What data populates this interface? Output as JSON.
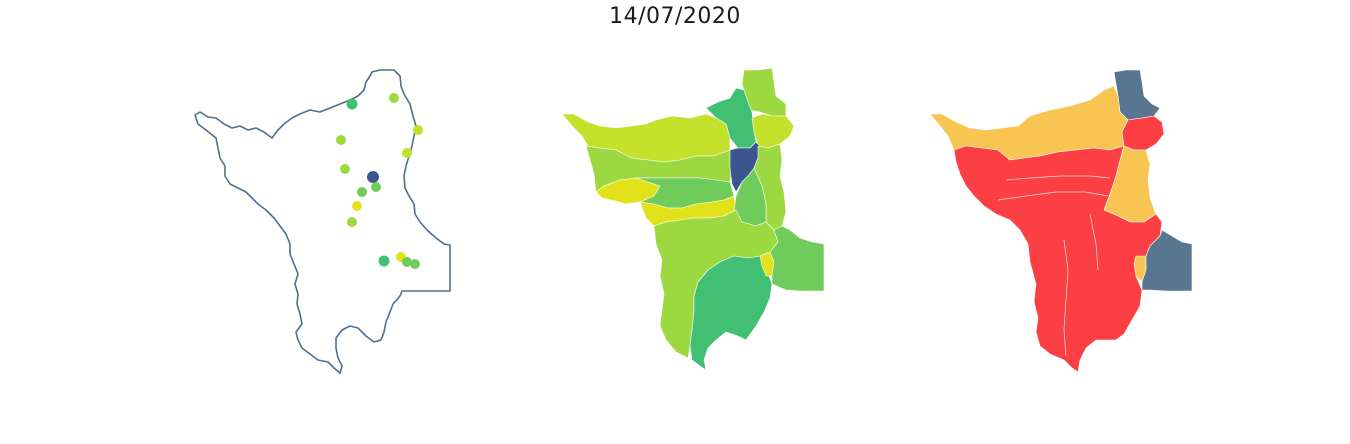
{
  "figure": {
    "title": "14/07/2020"
  },
  "colors": {
    "outline": "#4f6f8f",
    "dark_blue": "#3b5590",
    "green_dark": "#41bf72",
    "green_mid": "#6fcc5a",
    "green_lime": "#9cd940",
    "yellow_lime": "#c3e02a",
    "yellow": "#e3e21a",
    "red": "#fb3f42",
    "orange": "#f8c553",
    "slate": "#587690"
  },
  "stations": [
    {
      "id": "s1",
      "color": "green_dark"
    },
    {
      "id": "s2",
      "color": "green_lime"
    },
    {
      "id": "s3",
      "color": "yellow_lime"
    },
    {
      "id": "s4",
      "color": "green_lime"
    },
    {
      "id": "s5",
      "color": "yellow_lime"
    },
    {
      "id": "s6",
      "color": "green_lime"
    },
    {
      "id": "s7",
      "color": "dark_blue"
    },
    {
      "id": "s8",
      "color": "green_mid"
    },
    {
      "id": "s9",
      "color": "green_mid"
    },
    {
      "id": "s10",
      "color": "yellow"
    },
    {
      "id": "s11",
      "color": "green_lime"
    },
    {
      "id": "s12",
      "color": "green_dark"
    },
    {
      "id": "s13",
      "color": "yellow"
    },
    {
      "id": "s14",
      "color": "green_mid"
    },
    {
      "id": "s15",
      "color": "green_mid"
    }
  ]
}
